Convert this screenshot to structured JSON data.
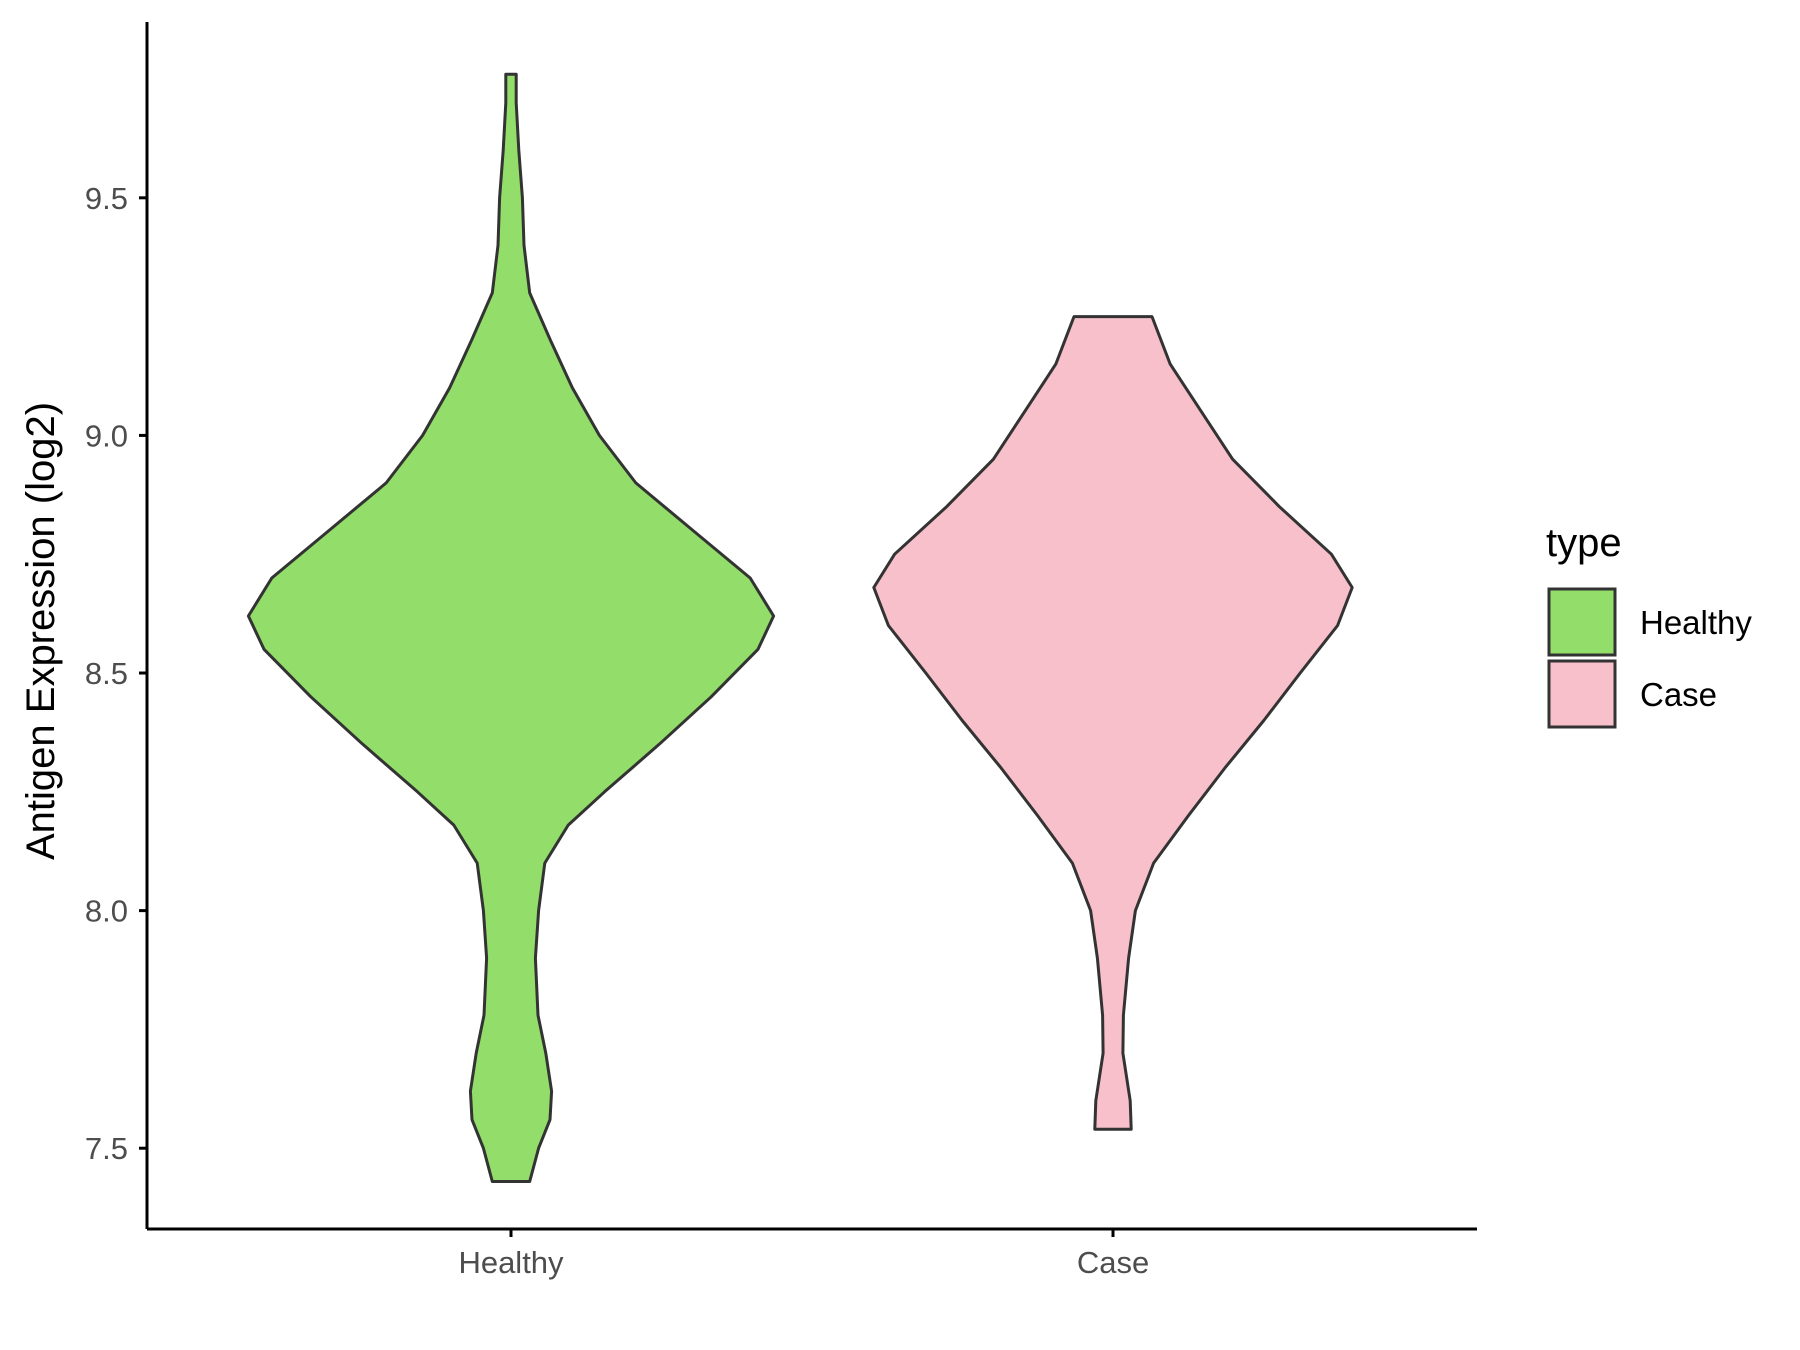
{
  "chart_data": {
    "type": "violin",
    "categories": [
      "Healthy",
      "Case"
    ],
    "ylabel": "Antigen Expression (log2)",
    "xlabel": "",
    "ylim": [
      7.33,
      9.87
    ],
    "yticks": [
      7.5,
      8.0,
      8.5,
      9.0,
      9.5
    ],
    "ytick_labels": [
      "7.5",
      "8.0",
      "8.5",
      "9.0",
      "9.5"
    ],
    "grid": false,
    "legend": {
      "title": "type",
      "placement": "right",
      "entries": [
        {
          "label": "Healthy",
          "color": "#93dd6a"
        },
        {
          "label": "Case",
          "color": "#f7c0cb"
        }
      ]
    },
    "series": [
      {
        "category": "Healthy",
        "color": "#93dd6a",
        "density": [
          [
            7.43,
            0.036
          ],
          [
            7.5,
            0.053
          ],
          [
            7.56,
            0.075
          ],
          [
            7.62,
            0.078
          ],
          [
            7.7,
            0.067
          ],
          [
            7.78,
            0.052
          ],
          [
            7.9,
            0.047
          ],
          [
            8.0,
            0.053
          ],
          [
            8.1,
            0.065
          ],
          [
            8.18,
            0.11
          ],
          [
            8.25,
            0.18
          ],
          [
            8.35,
            0.285
          ],
          [
            8.45,
            0.385
          ],
          [
            8.55,
            0.475
          ],
          [
            8.62,
            0.505
          ],
          [
            8.7,
            0.46
          ],
          [
            8.8,
            0.35
          ],
          [
            8.9,
            0.24
          ],
          [
            9.0,
            0.17
          ],
          [
            9.1,
            0.118
          ],
          [
            9.2,
            0.076
          ],
          [
            9.3,
            0.036
          ],
          [
            9.4,
            0.025
          ],
          [
            9.5,
            0.022
          ],
          [
            9.6,
            0.015
          ],
          [
            9.7,
            0.01
          ],
          [
            9.76,
            0.01
          ]
        ]
      },
      {
        "category": "Case",
        "color": "#f7c0cb",
        "density": [
          [
            7.54,
            0.035
          ],
          [
            7.6,
            0.033
          ],
          [
            7.7,
            0.019
          ],
          [
            7.78,
            0.02
          ],
          [
            7.9,
            0.03
          ],
          [
            8.0,
            0.043
          ],
          [
            8.1,
            0.078
          ],
          [
            8.2,
            0.145
          ],
          [
            8.3,
            0.215
          ],
          [
            8.4,
            0.29
          ],
          [
            8.5,
            0.36
          ],
          [
            8.6,
            0.432
          ],
          [
            8.68,
            0.46
          ],
          [
            8.75,
            0.42
          ],
          [
            8.85,
            0.32
          ],
          [
            8.95,
            0.23
          ],
          [
            9.05,
            0.17
          ],
          [
            9.15,
            0.11
          ],
          [
            9.25,
            0.075
          ]
        ]
      }
    ]
  }
}
